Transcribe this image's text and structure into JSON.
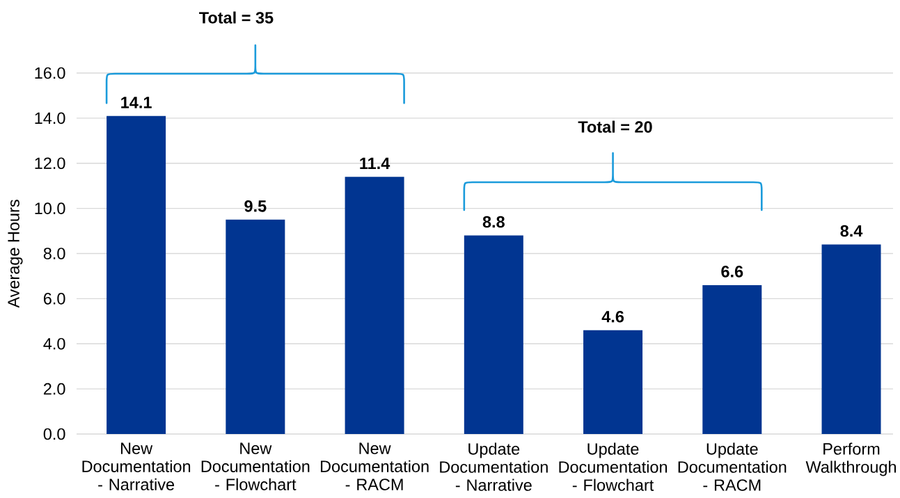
{
  "chart_data": {
    "type": "bar",
    "ylabel": "Average Hours",
    "annotations": [
      "Total = 35",
      "Total = 20"
    ],
    "categories": [
      "New Documentation - Narrative",
      "New Documentation - Flowchart",
      "New Documentation - RACM",
      "Update Documentation - Narrative",
      "Update Documentation - Flowchart",
      "Update Documentation - RACM",
      "Perform Walkthrough"
    ],
    "values": [
      14.1,
      9.5,
      11.4,
      8.8,
      4.6,
      6.6,
      8.4
    ],
    "color": "#013591",
    "ylim": [
      0,
      16
    ],
    "yticks": [
      {
        "value": 0,
        "label": "0.0"
      },
      {
        "value": 2,
        "label": "2.0"
      },
      {
        "value": 4,
        "label": "4.0"
      },
      {
        "value": 6,
        "label": "6.0"
      },
      {
        "value": 8,
        "label": "8.0"
      },
      {
        "value": 10,
        "label": "10.0"
      },
      {
        "value": 12,
        "label": "12.0"
      },
      {
        "value": 14,
        "label": "14.0"
      },
      {
        "value": 16,
        "label": "16.0"
      }
    ],
    "grid": "y",
    "data_labels": true
  }
}
